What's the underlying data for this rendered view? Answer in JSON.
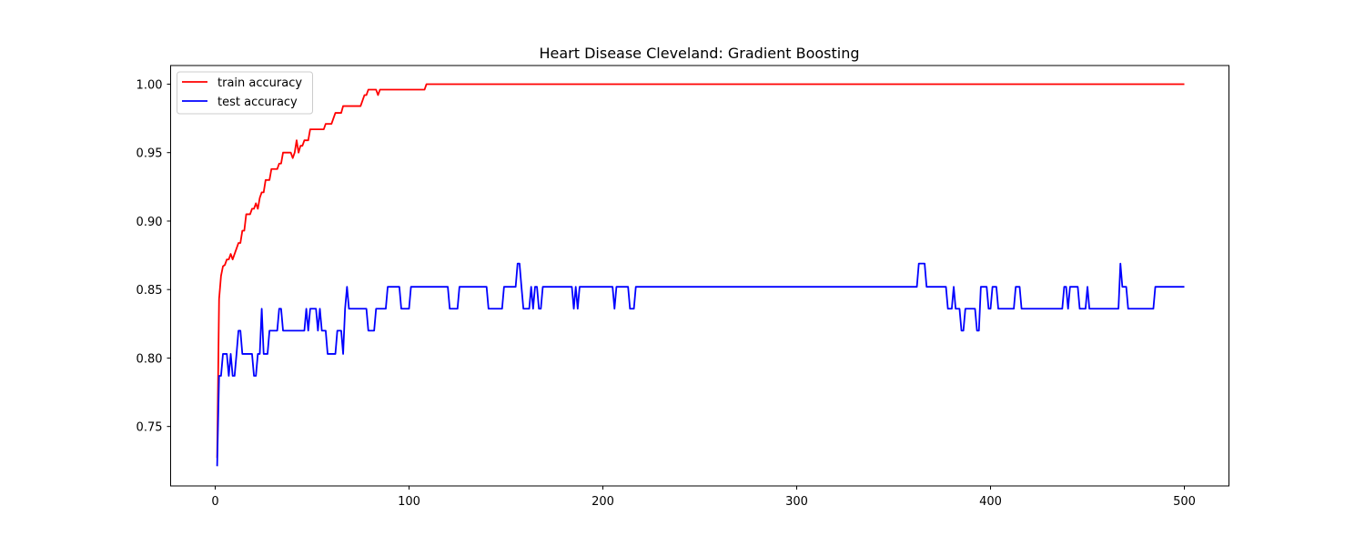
{
  "chart_data": {
    "type": "line",
    "title": "Heart Disease Cleveland: Gradient Boosting",
    "xlabel": "",
    "ylabel": "",
    "xlim": [
      -23,
      523
    ],
    "ylim": [
      0.7066,
      1.0136
    ],
    "xticks": [
      0,
      100,
      200,
      300,
      400,
      500
    ],
    "xtick_labels": [
      "0",
      "100",
      "200",
      "300",
      "400",
      "500"
    ],
    "yticks": [
      0.75,
      0.8,
      0.85,
      0.9,
      0.95,
      1.0
    ],
    "ytick_labels": [
      "0.75",
      "0.80",
      "0.85",
      "0.90",
      "0.95",
      "1.00"
    ],
    "grid": false,
    "legend_position": "top-left",
    "series": [
      {
        "name": "train accuracy",
        "color": "#ff0000",
        "points": [
          [
            1,
            0.727
          ],
          [
            2,
            0.843
          ],
          [
            3,
            0.86
          ],
          [
            4,
            0.867
          ],
          [
            5,
            0.868
          ],
          [
            6,
            0.872
          ],
          [
            7,
            0.872
          ],
          [
            8,
            0.876
          ],
          [
            9,
            0.872
          ],
          [
            10,
            0.876
          ],
          [
            11,
            0.88
          ],
          [
            12,
            0.884
          ],
          [
            13,
            0.884
          ],
          [
            14,
            0.893
          ],
          [
            15,
            0.893
          ],
          [
            16,
            0.905
          ],
          [
            17,
            0.905
          ],
          [
            18,
            0.905
          ],
          [
            19,
            0.909
          ],
          [
            20,
            0.909
          ],
          [
            21,
            0.913
          ],
          [
            22,
            0.909
          ],
          [
            23,
            0.917
          ],
          [
            24,
            0.921
          ],
          [
            25,
            0.921
          ],
          [
            26,
            0.93
          ],
          [
            27,
            0.93
          ],
          [
            28,
            0.93
          ],
          [
            29,
            0.938
          ],
          [
            30,
            0.938
          ],
          [
            31,
            0.938
          ],
          [
            32,
            0.938
          ],
          [
            33,
            0.942
          ],
          [
            34,
            0.942
          ],
          [
            35,
            0.95
          ],
          [
            36,
            0.95
          ],
          [
            37,
            0.95
          ],
          [
            38,
            0.95
          ],
          [
            39,
            0.95
          ],
          [
            40,
            0.946
          ],
          [
            41,
            0.95
          ],
          [
            42,
            0.959
          ],
          [
            43,
            0.95
          ],
          [
            44,
            0.955
          ],
          [
            45,
            0.955
          ],
          [
            46,
            0.959
          ],
          [
            47,
            0.959
          ],
          [
            48,
            0.959
          ],
          [
            49,
            0.967
          ],
          [
            50,
            0.967
          ],
          [
            52,
            0.967
          ],
          [
            55,
            0.967
          ],
          [
            56,
            0.967
          ],
          [
            57,
            0.971
          ],
          [
            58,
            0.971
          ],
          [
            60,
            0.971
          ],
          [
            61,
            0.975
          ],
          [
            62,
            0.979
          ],
          [
            63,
            0.979
          ],
          [
            65,
            0.979
          ],
          [
            66,
            0.984
          ],
          [
            68,
            0.984
          ],
          [
            70,
            0.984
          ],
          [
            72,
            0.984
          ],
          [
            74,
            0.984
          ],
          [
            75,
            0.984
          ],
          [
            76,
            0.988
          ],
          [
            77,
            0.992
          ],
          [
            78,
            0.992
          ],
          [
            79,
            0.996
          ],
          [
            80,
            0.996
          ],
          [
            82,
            0.996
          ],
          [
            83,
            0.996
          ],
          [
            84,
            0.992
          ],
          [
            85,
            0.996
          ],
          [
            86,
            0.996
          ],
          [
            90,
            0.996
          ],
          [
            100,
            0.996
          ],
          [
            105,
            0.996
          ],
          [
            108,
            0.996
          ],
          [
            109,
            1.0
          ],
          [
            150,
            1.0
          ],
          [
            200,
            1.0
          ],
          [
            250,
            1.0
          ],
          [
            300,
            1.0
          ],
          [
            350,
            1.0
          ],
          [
            400,
            1.0
          ],
          [
            450,
            1.0
          ],
          [
            500,
            1.0
          ]
        ]
      },
      {
        "name": "test accuracy",
        "color": "#0000ff",
        "points": [
          [
            1,
            0.721
          ],
          [
            2,
            0.787
          ],
          [
            3,
            0.787
          ],
          [
            4,
            0.803
          ],
          [
            5,
            0.803
          ],
          [
            6,
            0.803
          ],
          [
            7,
            0.787
          ],
          [
            8,
            0.803
          ],
          [
            9,
            0.787
          ],
          [
            10,
            0.787
          ],
          [
            11,
            0.803
          ],
          [
            12,
            0.82
          ],
          [
            13,
            0.82
          ],
          [
            14,
            0.803
          ],
          [
            15,
            0.803
          ],
          [
            16,
            0.803
          ],
          [
            17,
            0.803
          ],
          [
            18,
            0.803
          ],
          [
            19,
            0.803
          ],
          [
            20,
            0.787
          ],
          [
            21,
            0.787
          ],
          [
            22,
            0.803
          ],
          [
            23,
            0.803
          ],
          [
            24,
            0.836
          ],
          [
            25,
            0.803
          ],
          [
            26,
            0.803
          ],
          [
            27,
            0.803
          ],
          [
            28,
            0.82
          ],
          [
            29,
            0.82
          ],
          [
            30,
            0.82
          ],
          [
            31,
            0.82
          ],
          [
            32,
            0.82
          ],
          [
            33,
            0.836
          ],
          [
            34,
            0.836
          ],
          [
            35,
            0.82
          ],
          [
            36,
            0.82
          ],
          [
            40,
            0.82
          ],
          [
            45,
            0.82
          ],
          [
            46,
            0.82
          ],
          [
            47,
            0.836
          ],
          [
            48,
            0.82
          ],
          [
            49,
            0.836
          ],
          [
            50,
            0.836
          ],
          [
            51,
            0.836
          ],
          [
            52,
            0.836
          ],
          [
            53,
            0.82
          ],
          [
            54,
            0.836
          ],
          [
            55,
            0.82
          ],
          [
            56,
            0.82
          ],
          [
            57,
            0.82
          ],
          [
            58,
            0.803
          ],
          [
            59,
            0.803
          ],
          [
            60,
            0.803
          ],
          [
            61,
            0.803
          ],
          [
            62,
            0.803
          ],
          [
            63,
            0.82
          ],
          [
            64,
            0.82
          ],
          [
            65,
            0.82
          ],
          [
            66,
            0.803
          ],
          [
            67,
            0.836
          ],
          [
            68,
            0.852
          ],
          [
            69,
            0.836
          ],
          [
            70,
            0.836
          ],
          [
            75,
            0.836
          ],
          [
            78,
            0.836
          ],
          [
            79,
            0.82
          ],
          [
            80,
            0.82
          ],
          [
            82,
            0.82
          ],
          [
            83,
            0.836
          ],
          [
            84,
            0.836
          ],
          [
            88,
            0.836
          ],
          [
            89,
            0.852
          ],
          [
            95,
            0.852
          ],
          [
            96,
            0.836
          ],
          [
            100,
            0.836
          ],
          [
            101,
            0.852
          ],
          [
            110,
            0.852
          ],
          [
            120,
            0.852
          ],
          [
            121,
            0.836
          ],
          [
            125,
            0.836
          ],
          [
            126,
            0.852
          ],
          [
            130,
            0.852
          ],
          [
            140,
            0.852
          ],
          [
            141,
            0.836
          ],
          [
            145,
            0.836
          ],
          [
            148,
            0.836
          ],
          [
            149,
            0.852
          ],
          [
            150,
            0.852
          ],
          [
            155,
            0.852
          ],
          [
            156,
            0.869
          ],
          [
            157,
            0.869
          ],
          [
            158,
            0.852
          ],
          [
            159,
            0.836
          ],
          [
            160,
            0.836
          ],
          [
            162,
            0.836
          ],
          [
            163,
            0.852
          ],
          [
            164,
            0.836
          ],
          [
            165,
            0.852
          ],
          [
            166,
            0.852
          ],
          [
            167,
            0.836
          ],
          [
            168,
            0.836
          ],
          [
            169,
            0.852
          ],
          [
            170,
            0.852
          ],
          [
            175,
            0.852
          ],
          [
            180,
            0.852
          ],
          [
            184,
            0.852
          ],
          [
            185,
            0.836
          ],
          [
            186,
            0.852
          ],
          [
            187,
            0.836
          ],
          [
            188,
            0.852
          ],
          [
            190,
            0.852
          ],
          [
            200,
            0.852
          ],
          [
            205,
            0.852
          ],
          [
            206,
            0.836
          ],
          [
            207,
            0.852
          ],
          [
            210,
            0.852
          ],
          [
            213,
            0.852
          ],
          [
            214,
            0.836
          ],
          [
            216,
            0.836
          ],
          [
            217,
            0.852
          ],
          [
            250,
            0.852
          ],
          [
            300,
            0.852
          ],
          [
            350,
            0.852
          ],
          [
            362,
            0.852
          ],
          [
            363,
            0.869
          ],
          [
            366,
            0.869
          ],
          [
            367,
            0.852
          ],
          [
            377,
            0.852
          ],
          [
            378,
            0.836
          ],
          [
            380,
            0.836
          ],
          [
            381,
            0.852
          ],
          [
            382,
            0.836
          ],
          [
            384,
            0.836
          ],
          [
            385,
            0.82
          ],
          [
            386,
            0.82
          ],
          [
            387,
            0.836
          ],
          [
            390,
            0.836
          ],
          [
            392,
            0.836
          ],
          [
            393,
            0.82
          ],
          [
            394,
            0.82
          ],
          [
            395,
            0.852
          ],
          [
            398,
            0.852
          ],
          [
            399,
            0.836
          ],
          [
            400,
            0.836
          ],
          [
            401,
            0.852
          ],
          [
            403,
            0.852
          ],
          [
            404,
            0.836
          ],
          [
            410,
            0.836
          ],
          [
            412,
            0.836
          ],
          [
            413,
            0.852
          ],
          [
            415,
            0.852
          ],
          [
            416,
            0.836
          ],
          [
            430,
            0.836
          ],
          [
            437,
            0.836
          ],
          [
            438,
            0.852
          ],
          [
            439,
            0.852
          ],
          [
            440,
            0.836
          ],
          [
            441,
            0.852
          ],
          [
            445,
            0.852
          ],
          [
            446,
            0.836
          ],
          [
            449,
            0.836
          ],
          [
            450,
            0.852
          ],
          [
            451,
            0.836
          ],
          [
            460,
            0.836
          ],
          [
            466,
            0.836
          ],
          [
            467,
            0.869
          ],
          [
            468,
            0.852
          ],
          [
            470,
            0.852
          ],
          [
            471,
            0.836
          ],
          [
            480,
            0.836
          ],
          [
            484,
            0.836
          ],
          [
            485,
            0.852
          ],
          [
            490,
            0.852
          ],
          [
            500,
            0.852
          ]
        ]
      }
    ]
  }
}
